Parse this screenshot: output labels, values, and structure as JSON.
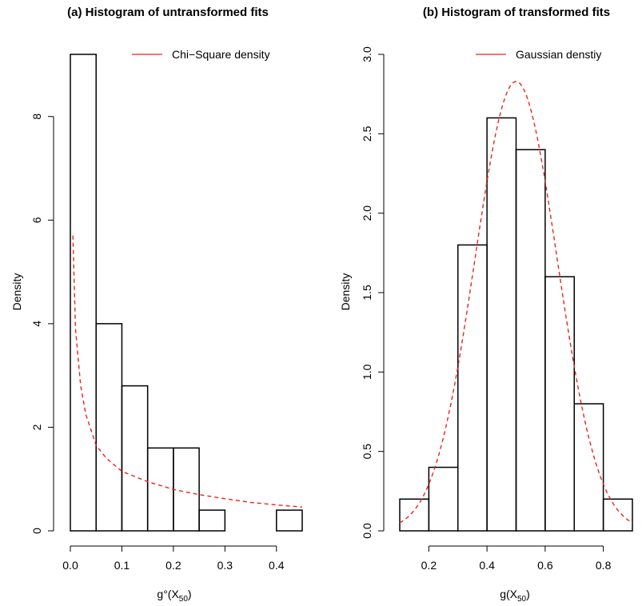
{
  "chart_data": [
    {
      "type": "bar",
      "title": "(a) Histogram of untransformed fits",
      "xlabel": "g°(X50)",
      "xlabel_parts": {
        "base": "g°(X",
        "sub": "50",
        "close": ")"
      },
      "ylabel": "Density",
      "xlim": [
        0,
        0.45
      ],
      "ylim": [
        0,
        9.2
      ],
      "x_ticks": [
        "0.0",
        "0.1",
        "0.2",
        "0.3",
        "0.4"
      ],
      "y_ticks": [
        "0",
        "2",
        "4",
        "6",
        "8"
      ],
      "bins": [
        {
          "x0": 0.0,
          "x1": 0.05,
          "density": 9.2
        },
        {
          "x0": 0.05,
          "x1": 0.1,
          "density": 4.0
        },
        {
          "x0": 0.1,
          "x1": 0.15,
          "density": 2.8
        },
        {
          "x0": 0.15,
          "x1": 0.2,
          "density": 1.6
        },
        {
          "x0": 0.2,
          "x1": 0.25,
          "density": 1.6
        },
        {
          "x0": 0.25,
          "x1": 0.3,
          "density": 0.4
        },
        {
          "x0": 0.3,
          "x1": 0.35,
          "density": 0.0
        },
        {
          "x0": 0.35,
          "x1": 0.4,
          "density": 0.0
        },
        {
          "x0": 0.4,
          "x1": 0.45,
          "density": 0.4
        }
      ],
      "curve": {
        "name": "Chi−Square density",
        "color": "#e8231f",
        "style": "dashed",
        "x": [
          0.005,
          0.01,
          0.02,
          0.03,
          0.05,
          0.07,
          0.1,
          0.15,
          0.2,
          0.25,
          0.3,
          0.35,
          0.4,
          0.45
        ],
        "y": [
          5.7,
          3.9,
          2.8,
          2.25,
          1.65,
          1.4,
          1.15,
          0.95,
          0.8,
          0.7,
          0.62,
          0.55,
          0.5,
          0.46
        ]
      },
      "legend_position": "top-right",
      "grid": false
    },
    {
      "type": "bar",
      "title": "(b) Histogram of transformed fits",
      "xlabel": "g(X50)",
      "xlabel_parts": {
        "base": "g(X",
        "sub": "50",
        "close": ")"
      },
      "ylabel": "Density",
      "xlim": [
        0.1,
        0.9
      ],
      "ylim": [
        0,
        3.0
      ],
      "x_ticks": [
        "0.2",
        "0.4",
        "0.6",
        "0.8"
      ],
      "y_ticks": [
        "0.0",
        "0.5",
        "1.0",
        "1.5",
        "2.0",
        "2.5",
        "3.0"
      ],
      "bins": [
        {
          "x0": 0.1,
          "x1": 0.2,
          "density": 0.2
        },
        {
          "x0": 0.2,
          "x1": 0.3,
          "density": 0.4
        },
        {
          "x0": 0.3,
          "x1": 0.4,
          "density": 1.8
        },
        {
          "x0": 0.4,
          "x1": 0.5,
          "density": 2.6
        },
        {
          "x0": 0.5,
          "x1": 0.6,
          "density": 2.4
        },
        {
          "x0": 0.6,
          "x1": 0.7,
          "density": 1.6
        },
        {
          "x0": 0.7,
          "x1": 0.8,
          "density": 0.8
        },
        {
          "x0": 0.8,
          "x1": 0.9,
          "density": 0.2
        }
      ],
      "curve": {
        "name": "Gaussian denstiy",
        "color": "#e8231f",
        "style": "dashed",
        "mean": 0.5,
        "sd": 0.141
      },
      "legend_position": "top-right",
      "grid": false
    }
  ]
}
